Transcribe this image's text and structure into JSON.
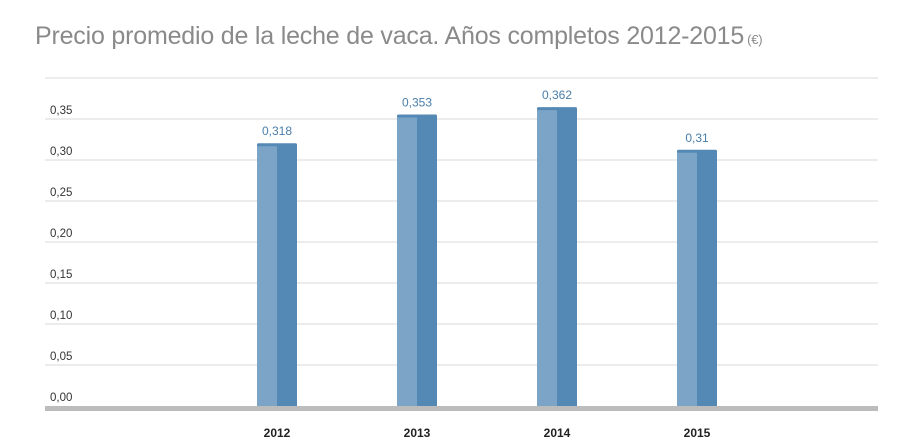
{
  "title": "Precio promedio de la leche de vaca. Años completos 2012-2015",
  "unit": "(€)",
  "colors": {
    "bar_light": "#7ba4c7",
    "bar_dark": "#5589b5",
    "gridline": "#d8d8d8",
    "baseline": "#bcbcbc",
    "data_label": "#4a7eaa"
  },
  "chart_data": {
    "type": "bar",
    "title": "Precio promedio de la leche de vaca. Años completos 2012-2015",
    "xlabel": "",
    "ylabel": "",
    "categories": [
      "2012",
      "2013",
      "2014",
      "2015"
    ],
    "values": [
      0.318,
      0.353,
      0.362,
      0.31
    ],
    "value_labels": [
      "0,318",
      "0,353",
      "0,362",
      "0,31"
    ],
    "y_ticks": [
      0,
      0.05,
      0.1,
      0.15,
      0.2,
      0.25,
      0.3,
      0.35
    ],
    "y_tick_labels": [
      "0,00",
      "0,05",
      "0,10",
      "0,15",
      "0,20",
      "0,25",
      "0,30",
      "0,35"
    ],
    "ylim": [
      0,
      0.4
    ],
    "grid": true,
    "legend": "none"
  }
}
